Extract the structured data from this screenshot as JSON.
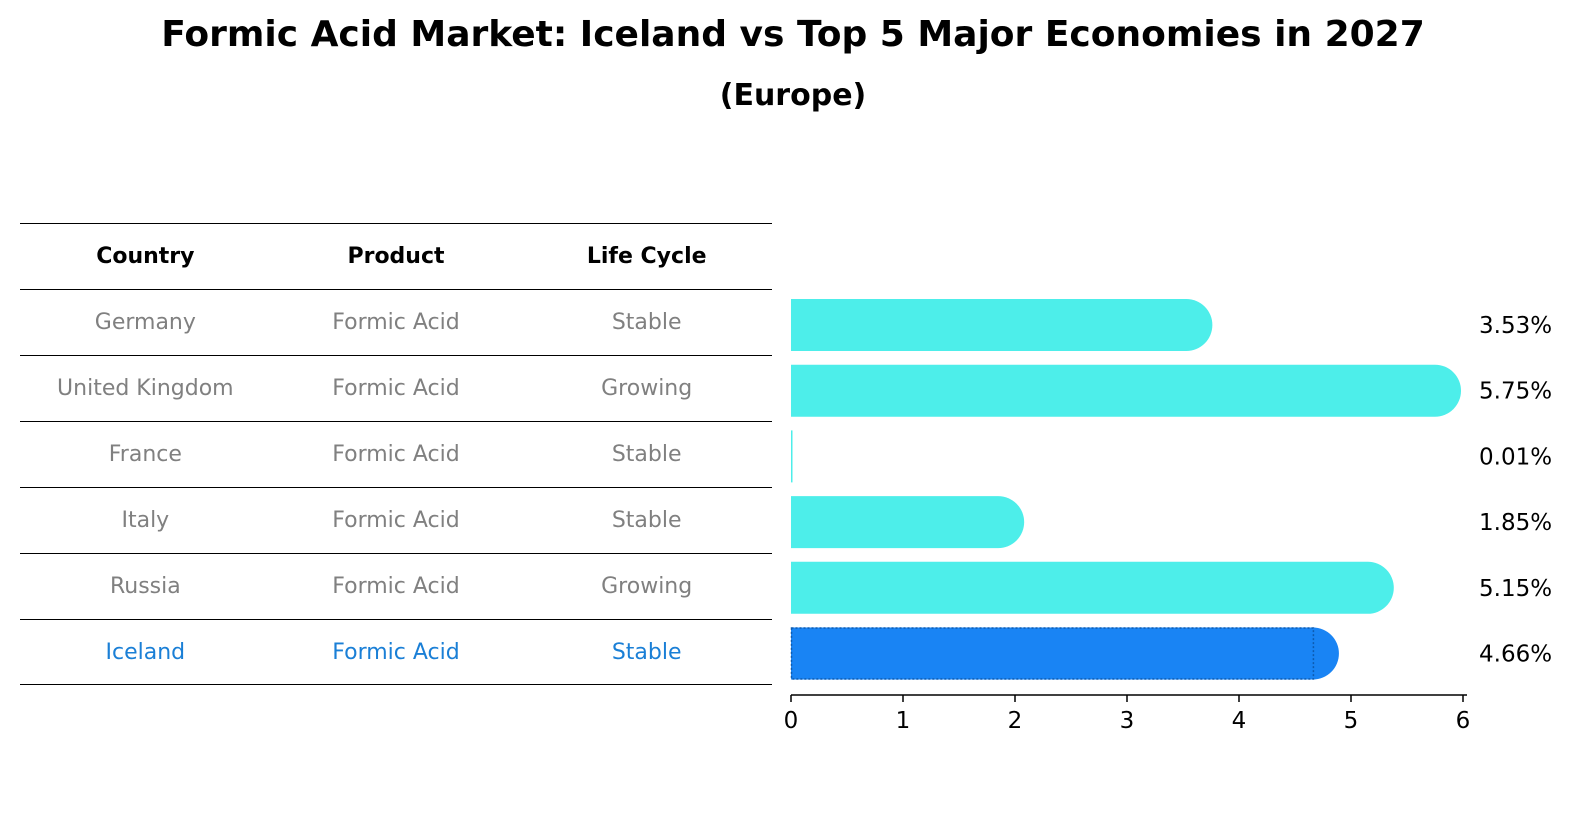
{
  "chart_data": {
    "type": "bar",
    "orientation": "horizontal",
    "title": "Formic Acid Market: Iceland vs Top 5 Major Economies in 2027",
    "subtitle": "(Europe)",
    "table": {
      "columns": [
        "Country",
        "Product",
        "Life Cycle"
      ],
      "rows": [
        {
          "country": "Germany",
          "product": "Formic Acid",
          "life_cycle": "Stable"
        },
        {
          "country": "United Kingdom",
          "product": "Formic Acid",
          "life_cycle": "Growing"
        },
        {
          "country": "France",
          "product": "Formic Acid",
          "life_cycle": "Stable"
        },
        {
          "country": "Italy",
          "product": "Formic Acid",
          "life_cycle": "Stable"
        },
        {
          "country": "Russia",
          "product": "Formic Acid",
          "life_cycle": "Growing"
        },
        {
          "country": "Iceland",
          "product": "Formic Acid",
          "life_cycle": "Stable"
        }
      ]
    },
    "categories": [
      "Germany",
      "United Kingdom",
      "France",
      "Italy",
      "Russia",
      "Iceland"
    ],
    "values": [
      3.53,
      5.75,
      0.01,
      1.85,
      5.15,
      4.66
    ],
    "value_labels": [
      "3.53%",
      "5.75%",
      "0.01%",
      "1.85%",
      "5.15%",
      "4.66%"
    ],
    "highlight": "Iceland",
    "xlim": [
      0,
      6
    ],
    "xticks": [
      "0",
      "1",
      "2",
      "3",
      "4",
      "5",
      "6"
    ],
    "colors": {
      "bar": "#4deeea",
      "highlight": "#1984f4",
      "highlight_text": "#1a7fd6",
      "muted_text": "#808080"
    }
  }
}
